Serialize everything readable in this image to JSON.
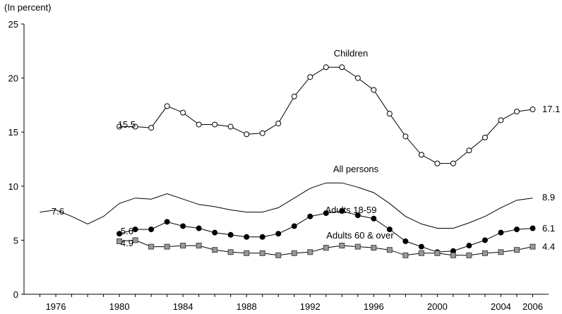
{
  "chart_data": {
    "type": "line",
    "unit_label": "(In percent)",
    "ylim": [
      0,
      25
    ],
    "yticks": [
      0,
      5,
      10,
      15,
      20,
      25
    ],
    "xlim": [
      1974,
      2007
    ],
    "xticks": [
      1976,
      1980,
      1984,
      1988,
      1992,
      1996,
      2000,
      2004,
      2006
    ],
    "grid": false,
    "series": [
      {
        "name": "Children",
        "marker": "open-circle",
        "x": [
          1980,
          1981,
          1982,
          1983,
          1984,
          1985,
          1986,
          1987,
          1988,
          1989,
          1990,
          1991,
          1992,
          1993,
          1994,
          1995,
          1996,
          1997,
          1998,
          1999,
          2000,
          2001,
          2002,
          2003,
          2004,
          2005,
          2006
        ],
        "values": [
          15.5,
          15.5,
          15.4,
          17.4,
          16.8,
          15.7,
          15.7,
          15.5,
          14.8,
          14.9,
          15.8,
          18.3,
          20.1,
          21.0,
          21.0,
          20.0,
          18.9,
          16.7,
          14.6,
          12.9,
          12.1,
          12.1,
          13.3,
          14.5,
          16.1,
          16.9,
          17.1
        ],
        "start_label": "15.5",
        "end_label": "17.1"
      },
      {
        "name": "All persons",
        "marker": "none",
        "x": [
          1975,
          1976,
          1977,
          1978,
          1979,
          1980,
          1981,
          1982,
          1983,
          1984,
          1985,
          1986,
          1987,
          1988,
          1989,
          1990,
          1991,
          1992,
          1993,
          1994,
          1995,
          1996,
          1997,
          1998,
          1999,
          2000,
          2001,
          2002,
          2003,
          2004,
          2005,
          2006
        ],
        "values": [
          7.6,
          7.8,
          7.2,
          6.5,
          7.2,
          8.4,
          8.9,
          8.8,
          9.3,
          8.8,
          8.3,
          8.1,
          7.8,
          7.6,
          7.6,
          8.0,
          8.9,
          9.8,
          10.3,
          10.3,
          9.9,
          9.4,
          8.4,
          7.2,
          6.5,
          6.1,
          6.1,
          6.6,
          7.2,
          8.0,
          8.7,
          8.9
        ],
        "start_label": "7.6",
        "end_label": "8.9"
      },
      {
        "name": "Adults 18-59",
        "marker": "filled-circle",
        "x": [
          1980,
          1981,
          1982,
          1983,
          1984,
          1985,
          1986,
          1987,
          1988,
          1989,
          1990,
          1991,
          1992,
          1993,
          1994,
          1995,
          1996,
          1997,
          1998,
          1999,
          2000,
          2001,
          2002,
          2003,
          2004,
          2005,
          2006
        ],
        "values": [
          5.6,
          6.0,
          6.0,
          6.7,
          6.3,
          6.1,
          5.7,
          5.5,
          5.3,
          5.3,
          5.6,
          6.3,
          7.2,
          7.5,
          7.7,
          7.3,
          7.0,
          6.0,
          4.9,
          4.4,
          3.9,
          4.0,
          4.5,
          5.0,
          5.7,
          6.0,
          6.1
        ],
        "start_label": "5.6",
        "end_label": "6.1"
      },
      {
        "name": "Adults 60 & over",
        "marker": "filled-square",
        "x": [
          1980,
          1981,
          1982,
          1983,
          1984,
          1985,
          1986,
          1987,
          1988,
          1989,
          1990,
          1991,
          1992,
          1993,
          1994,
          1995,
          1996,
          1997,
          1998,
          1999,
          2000,
          2001,
          2002,
          2003,
          2004,
          2005,
          2006
        ],
        "values": [
          4.9,
          5.0,
          4.4,
          4.4,
          4.5,
          4.5,
          4.1,
          3.9,
          3.8,
          3.8,
          3.6,
          3.8,
          3.9,
          4.3,
          4.5,
          4.4,
          4.3,
          4.1,
          3.6,
          3.8,
          3.8,
          3.6,
          3.6,
          3.8,
          3.9,
          4.1,
          4.4
        ],
        "start_label": "4.9",
        "end_label": "4.4"
      }
    ]
  }
}
